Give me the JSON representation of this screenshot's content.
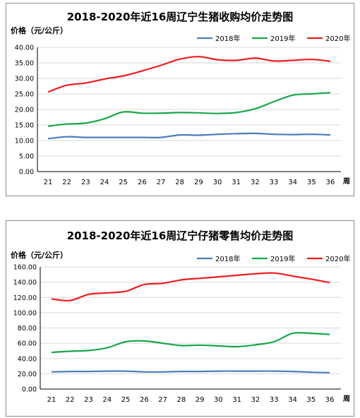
{
  "charts": [
    {
      "title": "2018-2020年近16周辽宁生猪收购均价走势图",
      "unit_label": "价格（元/公斤）",
      "x_unit": "周"
    },
    {
      "title": "2018-2020年近16周辽宁仔猪零售均价走势图",
      "unit_label": "价格（元/公斤）",
      "x_unit": "周"
    }
  ],
  "chart_data": [
    {
      "type": "line",
      "title": "2018-2020年近16周辽宁生猪收购均价走势图",
      "ylabel": "价格（元/公斤）",
      "xlabel": "周",
      "x": [
        21,
        22,
        23,
        24,
        25,
        26,
        27,
        28,
        29,
        30,
        31,
        32,
        33,
        34,
        35,
        36
      ],
      "ylim": [
        0,
        40
      ],
      "yticks": [
        "0.00",
        "5.00",
        "10.00",
        "15.00",
        "20.00",
        "25.00",
        "30.00",
        "35.00",
        "40.00"
      ],
      "grid": true,
      "legend_position": "top-right",
      "series": [
        {
          "name": "2018年",
          "color": "#4a7ebb",
          "values": [
            10.6,
            11.2,
            11.0,
            11.0,
            11.0,
            11.0,
            11.0,
            11.8,
            11.7,
            12.0,
            12.2,
            12.3,
            12.0,
            11.9,
            12.0,
            11.8
          ]
        },
        {
          "name": "2019年",
          "color": "#1aa64a",
          "values": [
            14.6,
            15.3,
            15.6,
            17.0,
            19.2,
            18.8,
            18.8,
            19.0,
            18.9,
            18.7,
            19.0,
            20.2,
            22.5,
            24.6,
            25.0,
            25.4
          ]
        },
        {
          "name": "2020年",
          "color": "#ee1c1c",
          "values": [
            25.6,
            27.8,
            28.5,
            29.8,
            30.8,
            32.4,
            34.2,
            36.2,
            37.0,
            36.0,
            35.8,
            36.5,
            35.6,
            35.8,
            36.1,
            35.5
          ]
        }
      ]
    },
    {
      "type": "line",
      "title": "2018-2020年近16周辽宁仔猪零售均价走势图",
      "ylabel": "价格（元/公斤）",
      "xlabel": "周",
      "x": [
        21,
        22,
        23,
        24,
        25,
        26,
        27,
        28,
        29,
        30,
        31,
        32,
        33,
        34,
        35,
        36
      ],
      "ylim": [
        0,
        160
      ],
      "yticks": [
        "0.00",
        "20.00",
        "40.00",
        "60.00",
        "80.00",
        "100.00",
        "120.00",
        "140.00",
        "160.00"
      ],
      "grid": true,
      "legend_position": "top-right",
      "series": [
        {
          "name": "2018年",
          "color": "#4a7ebb",
          "values": [
            22.5,
            23.0,
            23.0,
            23.5,
            23.5,
            22.5,
            22.5,
            23.0,
            23.0,
            23.5,
            23.5,
            23.5,
            23.5,
            23.0,
            22.0,
            21.5
          ]
        },
        {
          "name": "2019年",
          "color": "#1aa64a",
          "values": [
            48.0,
            49.5,
            50.5,
            54.0,
            62.0,
            63.0,
            60.0,
            57.0,
            57.5,
            56.5,
            55.5,
            58.0,
            62.0,
            73.0,
            73.0,
            71.5
          ]
        },
        {
          "name": "2020年",
          "color": "#ee1c1c",
          "values": [
            118.0,
            116.0,
            124.0,
            126.0,
            128.0,
            137.0,
            138.5,
            143.0,
            145.0,
            147.0,
            149.0,
            151.0,
            152.0,
            148.0,
            144.0,
            139.5
          ]
        }
      ]
    }
  ]
}
